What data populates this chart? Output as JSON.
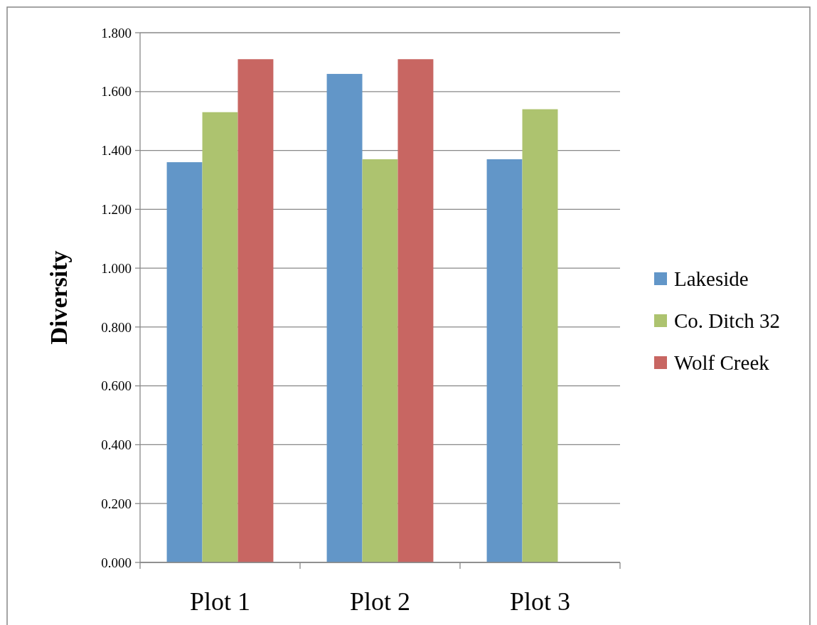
{
  "chart_data": {
    "type": "bar",
    "ylabel": "Diversity",
    "categories": [
      "Plot 1",
      "Plot 2",
      "Plot 3"
    ],
    "series": [
      {
        "name": "Lakeside",
        "color": "#6296c8",
        "values": [
          1.36,
          1.66,
          1.37
        ]
      },
      {
        "name": "Co. Ditch 32",
        "color": "#adc36f",
        "values": [
          1.53,
          1.37,
          1.54
        ]
      },
      {
        "name": "Wolf Creek",
        "color": "#c86662",
        "values": [
          1.71,
          1.71,
          null
        ]
      }
    ],
    "ylim": [
      0,
      1.8
    ],
    "yticks": [
      {
        "value": 0,
        "label": "0.000"
      },
      {
        "value": 0.2,
        "label": "0.200"
      },
      {
        "value": 0.4,
        "label": "0.400"
      },
      {
        "value": 0.6,
        "label": "0.600"
      },
      {
        "value": 0.8,
        "label": "0.800"
      },
      {
        "value": 1,
        "label": "1.000"
      },
      {
        "value": 1.2,
        "label": "1.200"
      },
      {
        "value": 1.4,
        "label": "1.400"
      },
      {
        "value": 1.6,
        "label": "1.600"
      },
      {
        "value": 1.8,
        "label": "1.800"
      }
    ],
    "grid": "y",
    "legend": "right"
  }
}
